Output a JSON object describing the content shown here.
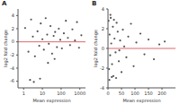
{
  "chart_data": [
    {
      "type": "scatter",
      "title": "A",
      "x_label": "Mean expression",
      "y_label": "log2 fold change",
      "log": "x",
      "grid": false,
      "xlim": [
        0.5,
        2000
      ],
      "xticks": [
        1,
        10,
        100,
        1000
      ],
      "ylim": [
        -7,
        5
      ],
      "yticks": [
        -6,
        -4,
        -2,
        0,
        2,
        4
      ],
      "color": "#555555",
      "marker": "circle",
      "x": [
        1.2,
        1.8,
        2.5,
        3.1,
        4.0,
        5.5,
        6.8,
        8.2,
        10,
        12,
        15,
        18,
        22,
        27,
        33,
        40,
        48,
        60,
        75,
        90,
        110,
        140,
        180,
        230,
        300,
        400,
        550,
        700,
        900,
        1200,
        2.2,
        3.5,
        7.5,
        20,
        45
      ],
      "values": [
        2.1,
        -1.5,
        3.4,
        0.8,
        -2.2,
        1.6,
        -0.6,
        2.8,
        0.4,
        -1.2,
        3.6,
        1.1,
        -0.3,
        2.4,
        -1.8,
        0.9,
        1.5,
        -0.8,
        2.0,
        0.3,
        -1.0,
        1.3,
        3.2,
        0.6,
        -0.5,
        1.9,
        0.2,
        3.0,
        -0.9,
        1.0,
        -5.8,
        -6.1,
        -5.6,
        -3.2,
        -2.6
      ],
      "reference_lines": [
        {
          "y": 0,
          "color": "#e06666"
        }
      ]
    },
    {
      "type": "scatter",
      "title": "B",
      "x_label": "Mean expression",
      "y_label": "log2 fold change",
      "grid": false,
      "xlim": [
        0,
        250
      ],
      "xticks": [
        0,
        50,
        100,
        150,
        200
      ],
      "ylim": [
        -4,
        4
      ],
      "yticks": [
        -4,
        -2,
        0,
        2,
        4
      ],
      "color": "#555555",
      "marker": "circle",
      "x": [
        2,
        4,
        6,
        8,
        10,
        12,
        15,
        18,
        20,
        24,
        28,
        32,
        36,
        40,
        45,
        50,
        55,
        60,
        68,
        75,
        85,
        95,
        105,
        120,
        135,
        150,
        170,
        190,
        210,
        5,
        9,
        14,
        22,
        30,
        42
      ],
      "values": [
        2.8,
        -2.1,
        1.4,
        -0.7,
        3.1,
        0.5,
        -1.6,
        2.2,
        -2.8,
        1.0,
        -0.4,
        2.6,
        1.7,
        -1.3,
        0.8,
        -2.4,
        1.9,
        0.2,
        -0.9,
        1.2,
        2.5,
        -1.8,
        0.6,
        1.5,
        -0.6,
        0.9,
        -1.1,
        0.4,
        0.7,
        -3.2,
        3.4,
        -2.9,
        2.9,
        -3.0,
        -0.2
      ],
      "reference_lines": [
        {
          "y": 0,
          "color": "#e06666"
        }
      ]
    }
  ]
}
